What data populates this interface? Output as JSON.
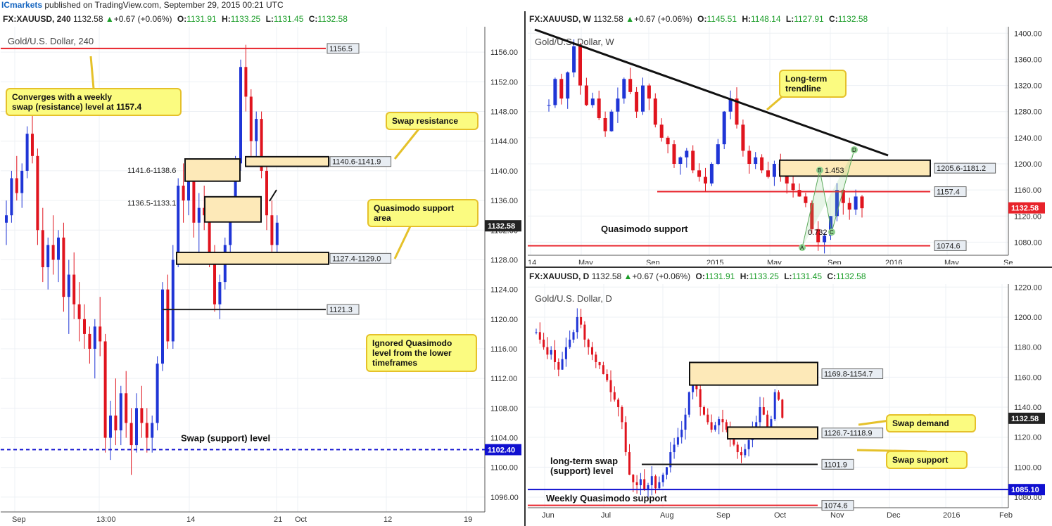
{
  "header": {
    "brand": "ICmarkets",
    "published": "published on TradingView.com, September 29, 2015 00:21 UTC"
  },
  "panels": [
    {
      "id": "h4",
      "symbol": "FX:XAUUSD, 240",
      "price": "1132.58",
      "change": "+0.67 (+0.06%)",
      "o": "1131.91",
      "h": "1133.25",
      "l": "1131.45",
      "c": "1132.58"
    },
    {
      "id": "w",
      "symbol": "FX:XAUUSD, W",
      "price": "1132.58",
      "change": "+0.67 (+0.06%)",
      "o": "1145.51",
      "h": "1148.14",
      "l": "1127.91",
      "c": "1132.58"
    },
    {
      "id": "d",
      "symbol": "FX:XAUUSD, D",
      "price": "1132.58",
      "change": "+0.67 (+0.06%)",
      "o": "1131.91",
      "h": "1133.25",
      "l": "1131.45",
      "c": "1132.58"
    }
  ],
  "colors": {
    "bull": "#1f35d6",
    "bear": "#e0141e",
    "zone_fill": "#fde9b8",
    "note_fill": "#fbfb80",
    "note_border": "#e5c12a",
    "support_red": "#e8222a",
    "swap_blue": "#1010d0"
  },
  "chart_data": [
    {
      "id": "h4",
      "type": "candlestick",
      "title": "Gold/U.S. Dollar, 240",
      "ylim": [
        1094,
        1160
      ],
      "yticks": [
        1096,
        1100,
        1104,
        1108,
        1112,
        1116,
        1120,
        1124,
        1128,
        1132,
        1136,
        1140,
        1144,
        1148,
        1152,
        1156
      ],
      "xticks": [
        "Sep",
        "13:00",
        "14",
        "21",
        "Oct",
        "12",
        "19"
      ],
      "current_price": "1132.58",
      "levels": [
        {
          "label": "1156.5",
          "value": 1156.5,
          "color": "#e8222a"
        },
        {
          "label": "1121.3",
          "value": 1121.3,
          "color": "#222222"
        },
        {
          "label": "1102.40",
          "value": 1102.4,
          "color": "#1010d0",
          "dashed": true,
          "price_tag": true
        }
      ],
      "zones": [
        {
          "label": "1141.6-1138.6",
          "top": 1141.6,
          "bottom": 1138.6
        },
        {
          "label": "1136.5-1133.1",
          "top": 1136.5,
          "bottom": 1133.1
        },
        {
          "label": "1140.6-1141.9",
          "top": 1141.9,
          "bottom": 1140.6
        },
        {
          "label": "1127.4-1129.0",
          "top": 1129.0,
          "bottom": 1127.4
        }
      ],
      "annotations": [
        "Converges with a weekly swap (resistance) level at 1157.4",
        "Swap resistance",
        "Quasimodo support area",
        "Ignored Quasimodo level from the lower timeframes",
        "Swap (support) level"
      ],
      "candles": [
        [
          1133,
          1136,
          1130,
          1134
        ],
        [
          1134,
          1140,
          1133,
          1139
        ],
        [
          1139,
          1142,
          1136,
          1137
        ],
        [
          1137,
          1141,
          1135,
          1140
        ],
        [
          1140,
          1146,
          1139,
          1145
        ],
        [
          1145,
          1148,
          1141,
          1142
        ],
        [
          1142,
          1143,
          1130,
          1132
        ],
        [
          1132,
          1135,
          1125,
          1127
        ],
        [
          1127,
          1131,
          1124,
          1130
        ],
        [
          1130,
          1134,
          1126,
          1128
        ],
        [
          1128,
          1132,
          1125,
          1131
        ],
        [
          1131,
          1133,
          1121,
          1123
        ],
        [
          1123,
          1128,
          1118,
          1126
        ],
        [
          1126,
          1129,
          1120,
          1122
        ],
        [
          1122,
          1125,
          1117,
          1120
        ],
        [
          1120,
          1122,
          1116,
          1118
        ],
        [
          1118,
          1119,
          1114,
          1116
        ],
        [
          1116,
          1120,
          1112,
          1119
        ],
        [
          1119,
          1123,
          1115,
          1117
        ],
        [
          1117,
          1118,
          1102,
          1104
        ],
        [
          1104,
          1109,
          1101,
          1107
        ],
        [
          1107,
          1112,
          1103,
          1105
        ],
        [
          1105,
          1111,
          1103,
          1110
        ],
        [
          1110,
          1113,
          1104,
          1106
        ],
        [
          1106,
          1108,
          1099,
          1103
        ],
        [
          1103,
          1110,
          1102,
          1108
        ],
        [
          1108,
          1111,
          1104,
          1106
        ],
        [
          1106,
          1108,
          1102,
          1104
        ],
        [
          1104,
          1107,
          1102,
          1106
        ],
        [
          1106,
          1115,
          1105,
          1114
        ],
        [
          1114,
          1125,
          1113,
          1124
        ],
        [
          1124,
          1126,
          1116,
          1117
        ],
        [
          1117,
          1130,
          1116,
          1128
        ],
        [
          1128,
          1139,
          1127,
          1138
        ],
        [
          1138,
          1141,
          1133,
          1136
        ],
        [
          1136,
          1141,
          1134,
          1140
        ],
        [
          1140,
          1141,
          1131,
          1133
        ],
        [
          1133,
          1137,
          1129,
          1135
        ],
        [
          1135,
          1138,
          1132,
          1134
        ],
        [
          1134,
          1135,
          1127,
          1129
        ],
        [
          1129,
          1130,
          1121,
          1122
        ],
        [
          1122,
          1126,
          1120,
          1125
        ],
        [
          1125,
          1131,
          1124,
          1130
        ],
        [
          1130,
          1136,
          1129,
          1135
        ],
        [
          1135,
          1142,
          1134,
          1141
        ],
        [
          1141,
          1155,
          1140,
          1154
        ],
        [
          1154,
          1157,
          1148,
          1150
        ],
        [
          1150,
          1151,
          1142,
          1144
        ],
        [
          1144,
          1148,
          1141,
          1147
        ],
        [
          1147,
          1148,
          1139,
          1140
        ],
        [
          1140,
          1141,
          1132,
          1134
        ],
        [
          1134,
          1136,
          1128,
          1130
        ],
        [
          1130,
          1134,
          1129,
          1133
        ]
      ]
    },
    {
      "id": "w",
      "type": "candlestick",
      "title": "Gold/U.S. Dollar, W",
      "ylim": [
        1060,
        1410
      ],
      "yticks": [
        1080,
        1120,
        1160,
        1200,
        1240,
        1280,
        1320,
        1360,
        1400
      ],
      "xticks": [
        "14",
        "May",
        "Sep",
        "2015",
        "May",
        "Sep",
        "2016",
        "May",
        "Se"
      ],
      "current_price": "1132.58",
      "levels": [
        {
          "label": "1157.4",
          "value": 1157.4,
          "color": "#e8222a"
        },
        {
          "label": "1074.6",
          "value": 1074.6,
          "color": "#e8222a"
        }
      ],
      "zones": [
        {
          "label": "1205.6-1181.2",
          "top": 1205.6,
          "bottom": 1181.2
        }
      ],
      "annotations": [
        "Long-term trendline",
        "Quasimodo support"
      ],
      "harmonic": {
        "labels": [
          "A",
          "B",
          "C",
          "D"
        ],
        "b_ratio": "1.453",
        "c_ratio": "0.732"
      },
      "closes": [
        1290,
        1330,
        1300,
        1340,
        1380,
        1320,
        1290,
        1300,
        1270,
        1250,
        1280,
        1300,
        1330,
        1310,
        1280,
        1320,
        1300,
        1260,
        1240,
        1230,
        1200,
        1210,
        1220,
        1190,
        1180,
        1170,
        1200,
        1230,
        1280,
        1300,
        1260,
        1220,
        1200,
        1210,
        1190,
        1180,
        1200,
        1190,
        1170,
        1160,
        1150,
        1140,
        1100,
        1080,
        1090,
        1120,
        1160,
        1140,
        1130,
        1150,
        1132
      ]
    },
    {
      "id": "d",
      "type": "candlestick",
      "title": "Gold/U.S. Dollar, D",
      "ylim": [
        1073,
        1222
      ],
      "yticks": [
        1080,
        1100,
        1120,
        1140,
        1160,
        1180,
        1200,
        1220
      ],
      "xticks": [
        "Jun",
        "Jul",
        "Aug",
        "Sep",
        "Oct",
        "Nov",
        "Dec",
        "2016",
        "Feb"
      ],
      "current_price": "1132.58",
      "levels": [
        {
          "label": "1101.9",
          "value": 1101.9,
          "color": "#222222"
        },
        {
          "label": "1085.10",
          "value": 1085.1,
          "color": "#1010d0",
          "price_tag": true
        },
        {
          "label": "1074.6",
          "value": 1074.6,
          "color": "#e8222a"
        }
      ],
      "zones": [
        {
          "label": "1169.8-1154.7",
          "top": 1169.8,
          "bottom": 1154.7
        },
        {
          "label": "1126.7-1118.9",
          "top": 1126.7,
          "bottom": 1118.9
        }
      ],
      "annotations": [
        "Swap demand",
        "Swap support",
        "long-term swap (support) level",
        "Weekly Quasimodo support"
      ],
      "closes": [
        1190,
        1185,
        1180,
        1175,
        1178,
        1170,
        1165,
        1172,
        1180,
        1185,
        1190,
        1200,
        1195,
        1185,
        1180,
        1175,
        1170,
        1168,
        1162,
        1158,
        1150,
        1145,
        1140,
        1130,
        1110,
        1095,
        1090,
        1088,
        1092,
        1085,
        1088,
        1094,
        1086,
        1090,
        1095,
        1100,
        1110,
        1115,
        1120,
        1125,
        1135,
        1150,
        1160,
        1152,
        1140,
        1135,
        1130,
        1125,
        1128,
        1132,
        1130,
        1125,
        1120,
        1115,
        1110,
        1108,
        1112,
        1118,
        1125,
        1130,
        1140,
        1135,
        1125,
        1132,
        1150,
        1145,
        1133
      ]
    }
  ]
}
